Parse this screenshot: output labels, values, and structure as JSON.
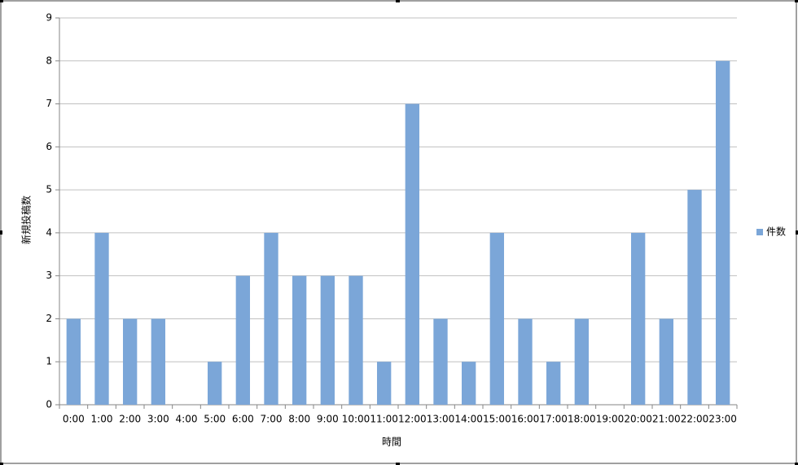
{
  "chart_data": {
    "type": "bar",
    "y_label": "新規投稿数",
    "x_label": "時間",
    "categories": [
      "0:00",
      "1:00",
      "2:00",
      "3:00",
      "4:00",
      "5:00",
      "6:00",
      "7:00",
      "8:00",
      "9:00",
      "10:00",
      "11:00",
      "12:00",
      "13:00",
      "14:00",
      "15:00",
      "16:00",
      "17:00",
      "18:00",
      "19:00",
      "20:00",
      "21:00",
      "22:00",
      "23:00"
    ],
    "series": [
      {
        "name": "件数",
        "color": "#7ba6d8",
        "values": [
          2,
          4,
          2,
          2,
          0,
          1,
          3,
          4,
          3,
          3,
          3,
          1,
          7,
          2,
          1,
          4,
          2,
          1,
          2,
          0,
          4,
          2,
          5,
          8
        ]
      }
    ],
    "ylim": [
      0,
      9
    ],
    "yticks": [
      0,
      1,
      2,
      3,
      4,
      5,
      6,
      7,
      8,
      9
    ],
    "grid": true,
    "legend": "right"
  }
}
